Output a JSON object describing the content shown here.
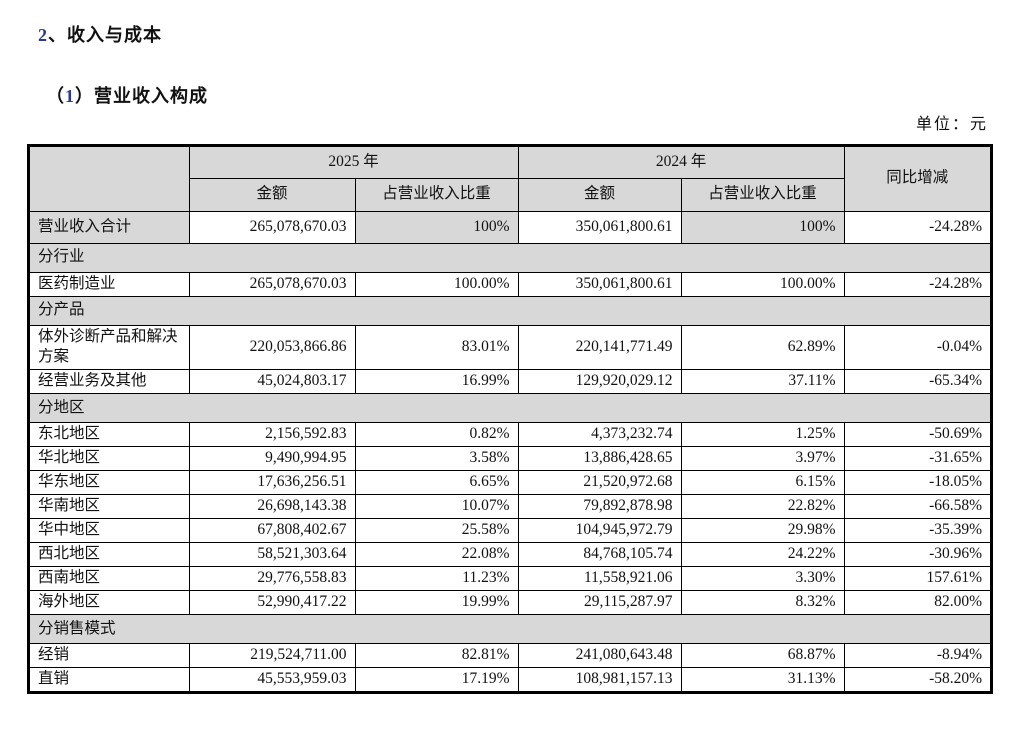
{
  "colors": {
    "accent_digit": "#2b3990",
    "table_shade": "#d8d8d8",
    "border": "#000000"
  },
  "page": {
    "section_title": {
      "number": "2",
      "separator": "、",
      "text": "收入与成本"
    },
    "subsection_title": {
      "open": "（",
      "number": "1",
      "close": "）",
      "text": "营业收入构成"
    },
    "unit_label": "单位：元"
  },
  "table": {
    "header": {
      "year_2025": "2025 年",
      "year_2024": "2024 年",
      "amount": "金额",
      "ratio": "占营业收入比重",
      "yoy": "同比增减"
    },
    "rows": [
      {
        "type": "total",
        "label": "营业收入合计",
        "amount_2025": "265,078,670.03",
        "ratio_2025": "100%",
        "amount_2024": "350,061,800.61",
        "ratio_2024": "100%",
        "yoy": "-24.28%"
      },
      {
        "type": "section",
        "label": "分行业"
      },
      {
        "type": "data",
        "label": "医药制造业",
        "amount_2025": "265,078,670.03",
        "ratio_2025": "100.00%",
        "amount_2024": "350,061,800.61",
        "ratio_2024": "100.00%",
        "yoy": "-24.28%"
      },
      {
        "type": "section",
        "label": "分产品"
      },
      {
        "type": "data",
        "label": "体外诊断产品和解决方案",
        "amount_2025": "220,053,866.86",
        "ratio_2025": "83.01%",
        "amount_2024": "220,141,771.49",
        "ratio_2024": "62.89%",
        "yoy": "-0.04%"
      },
      {
        "type": "data",
        "label": "经营业务及其他",
        "amount_2025": "45,024,803.17",
        "ratio_2025": "16.99%",
        "amount_2024": "129,920,029.12",
        "ratio_2024": "37.11%",
        "yoy": "-65.34%"
      },
      {
        "type": "section",
        "label": "分地区"
      },
      {
        "type": "data",
        "label": "东北地区",
        "amount_2025": "2,156,592.83",
        "ratio_2025": "0.82%",
        "amount_2024": "4,373,232.74",
        "ratio_2024": "1.25%",
        "yoy": "-50.69%"
      },
      {
        "type": "data",
        "label": "华北地区",
        "amount_2025": "9,490,994.95",
        "ratio_2025": "3.58%",
        "amount_2024": "13,886,428.65",
        "ratio_2024": "3.97%",
        "yoy": "-31.65%"
      },
      {
        "type": "data",
        "label": "华东地区",
        "amount_2025": "17,636,256.51",
        "ratio_2025": "6.65%",
        "amount_2024": "21,520,972.68",
        "ratio_2024": "6.15%",
        "yoy": "-18.05%"
      },
      {
        "type": "data",
        "label": "华南地区",
        "amount_2025": "26,698,143.38",
        "ratio_2025": "10.07%",
        "amount_2024": "79,892,878.98",
        "ratio_2024": "22.82%",
        "yoy": "-66.58%"
      },
      {
        "type": "data",
        "label": "华中地区",
        "amount_2025": "67,808,402.67",
        "ratio_2025": "25.58%",
        "amount_2024": "104,945,972.79",
        "ratio_2024": "29.98%",
        "yoy": "-35.39%"
      },
      {
        "type": "data",
        "label": "西北地区",
        "amount_2025": "58,521,303.64",
        "ratio_2025": "22.08%",
        "amount_2024": "84,768,105.74",
        "ratio_2024": "24.22%",
        "yoy": "-30.96%"
      },
      {
        "type": "data",
        "label": "西南地区",
        "amount_2025": "29,776,558.83",
        "ratio_2025": "11.23%",
        "amount_2024": "11,558,921.06",
        "ratio_2024": "3.30%",
        "yoy": "157.61%"
      },
      {
        "type": "data",
        "label": "海外地区",
        "amount_2025": "52,990,417.22",
        "ratio_2025": "19.99%",
        "amount_2024": "29,115,287.97",
        "ratio_2024": "8.32%",
        "yoy": "82.00%"
      },
      {
        "type": "section",
        "label": "分销售模式"
      },
      {
        "type": "data",
        "label": "经销",
        "amount_2025": "219,524,711.00",
        "ratio_2025": "82.81%",
        "amount_2024": "241,080,643.48",
        "ratio_2024": "68.87%",
        "yoy": "-8.94%"
      },
      {
        "type": "data",
        "label": "直销",
        "amount_2025": "45,553,959.03",
        "ratio_2025": "17.19%",
        "amount_2024": "108,981,157.13",
        "ratio_2024": "31.13%",
        "yoy": "-58.20%"
      }
    ]
  }
}
